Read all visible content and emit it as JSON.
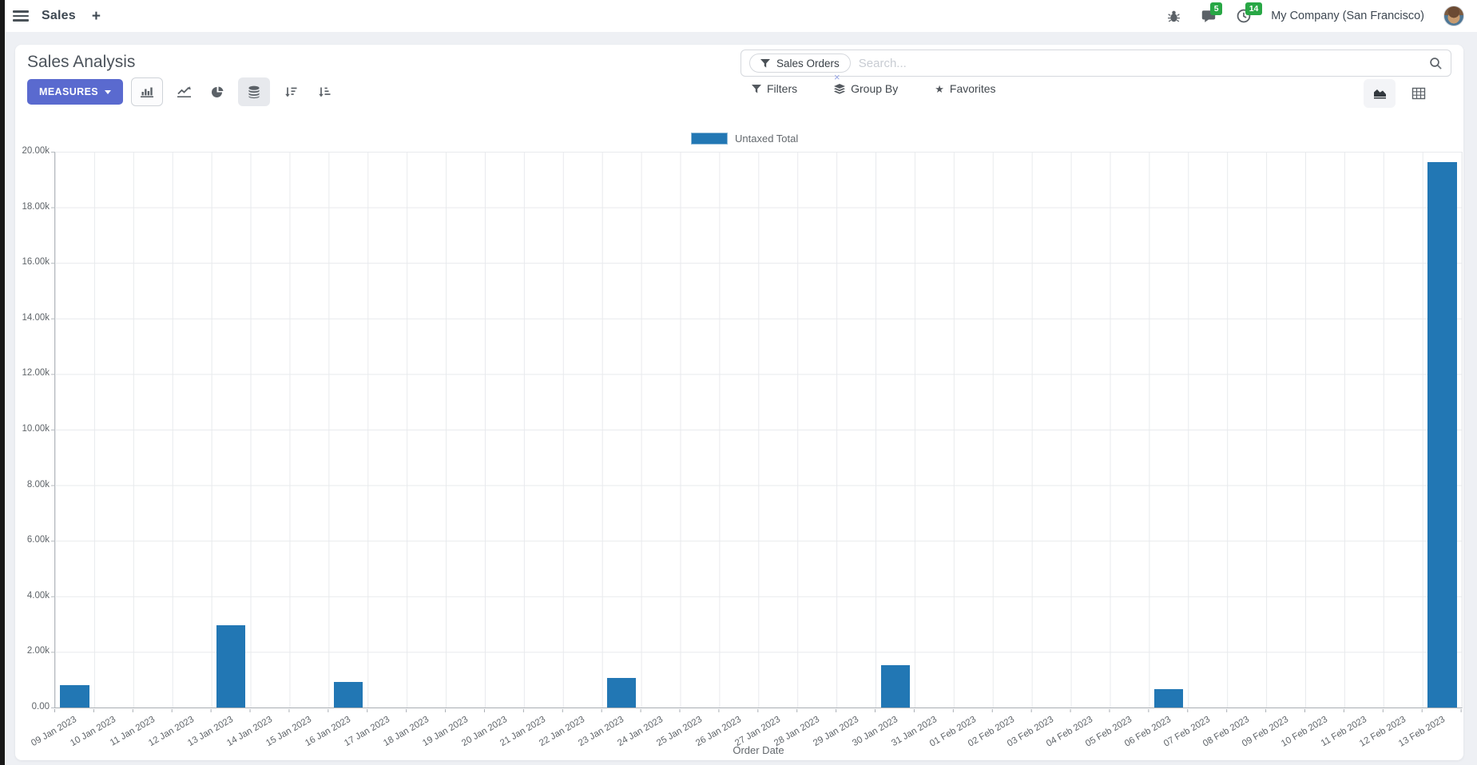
{
  "navbar": {
    "app_name": "Sales",
    "new_window_label": "+",
    "messages_badge": "5",
    "activities_badge": "14",
    "company": "My Company (San Francisco)"
  },
  "control_panel": {
    "title": "Sales Analysis",
    "measures_label": "MEASURES",
    "search": {
      "facet_label": "Sales Orders",
      "facet_remove": "×",
      "placeholder": "Search..."
    },
    "menus": {
      "filters": "Filters",
      "group_by": "Group By",
      "favorites": "Favorites"
    }
  },
  "colors": {
    "bar": "#2277b4",
    "primary_button": "#5a6acf",
    "badge_green": "#28a745"
  },
  "chart_data": {
    "type": "bar",
    "title": "",
    "legend": "Untaxed Total",
    "xlabel": "Order Date",
    "ylabel": "",
    "ylim": [
      0,
      20000
    ],
    "grid": true,
    "legend_position": "top-center",
    "ytick_labels": [
      "0.00",
      "2.00k",
      "4.00k",
      "6.00k",
      "8.00k",
      "10.00k",
      "12.00k",
      "14.00k",
      "16.00k",
      "18.00k",
      "20.00k"
    ],
    "categories": [
      "09 Jan 2023",
      "10 Jan 2023",
      "11 Jan 2023",
      "12 Jan 2023",
      "13 Jan 2023",
      "14 Jan 2023",
      "15 Jan 2023",
      "16 Jan 2023",
      "17 Jan 2023",
      "18 Jan 2023",
      "19 Jan 2023",
      "20 Jan 2023",
      "21 Jan 2023",
      "22 Jan 2023",
      "23 Jan 2023",
      "24 Jan 2023",
      "25 Jan 2023",
      "26 Jan 2023",
      "27 Jan 2023",
      "28 Jan 2023",
      "29 Jan 2023",
      "30 Jan 2023",
      "31 Jan 2023",
      "01 Feb 2023",
      "02 Feb 2023",
      "03 Feb 2023",
      "04 Feb 2023",
      "05 Feb 2023",
      "06 Feb 2023",
      "07 Feb 2023",
      "08 Feb 2023",
      "09 Feb 2023",
      "10 Feb 2023",
      "11 Feb 2023",
      "12 Feb 2023",
      "13 Feb 2023"
    ],
    "values": [
      800,
      0,
      0,
      0,
      2950,
      0,
      0,
      920,
      0,
      0,
      0,
      0,
      0,
      0,
      1060,
      0,
      0,
      0,
      0,
      0,
      0,
      1520,
      0,
      0,
      0,
      0,
      0,
      0,
      660,
      0,
      0,
      0,
      0,
      0,
      0,
      19630
    ],
    "series": [
      {
        "name": "Untaxed Total",
        "values_ref": "values"
      }
    ]
  }
}
